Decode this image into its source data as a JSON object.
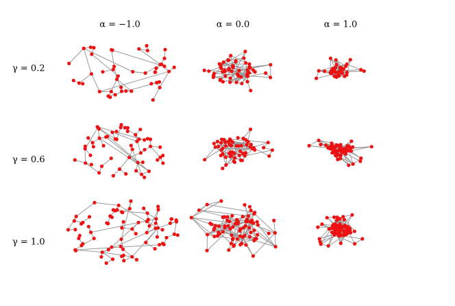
{
  "columns": [
    "α = −1.0",
    "α = 0.0",
    "α = 1.0"
  ],
  "rows": [
    "γ = 0.2",
    "γ = 0.6",
    "γ = 1.0"
  ]
}
